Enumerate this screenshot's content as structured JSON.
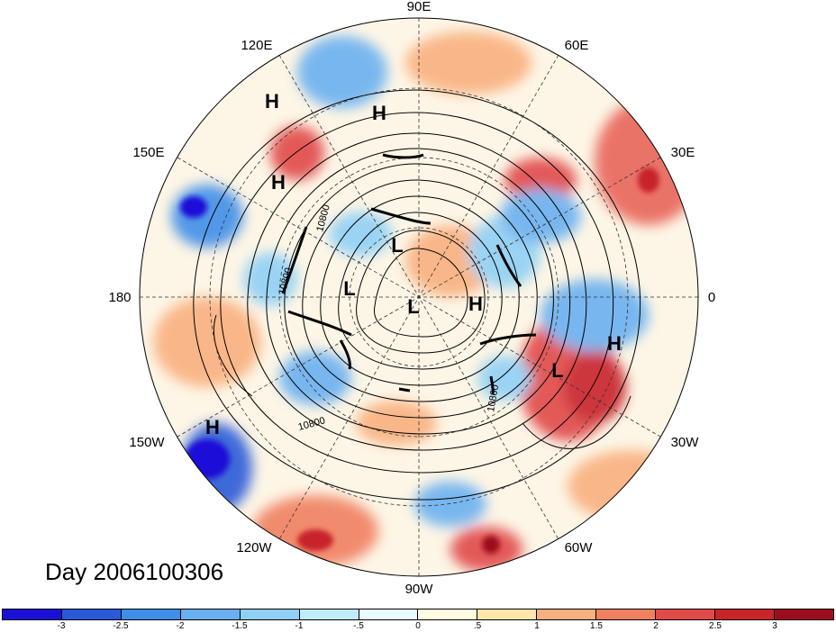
{
  "title": "Day 2006100306",
  "longitude_labels": {
    "e90": "90E",
    "e60": "60E",
    "e30": "30E",
    "lon0": "0",
    "w30": "30W",
    "w60": "60W",
    "w90": "90W",
    "w120": "120W",
    "w150": "150W",
    "lon180": "180",
    "e150": "150E",
    "e120": "120E"
  },
  "pressure_centers": [
    {
      "symbol": "H",
      "name": "high-120e"
    },
    {
      "symbol": "H",
      "name": "high-90e"
    },
    {
      "symbol": "H",
      "name": "high-150e"
    },
    {
      "symbol": "L",
      "name": "low-north-pacific"
    },
    {
      "symbol": "L",
      "name": "low-bering"
    },
    {
      "symbol": "L",
      "name": "low-pole"
    },
    {
      "symbol": "H",
      "name": "high-greenland"
    },
    {
      "symbol": "L",
      "name": "low-north-atlantic"
    },
    {
      "symbol": "H",
      "name": "high-east-atlantic"
    },
    {
      "symbol": "H",
      "name": "high-north-pacific-east"
    }
  ],
  "contour_labels": [
    "10800",
    "10800",
    "10800",
    "10800"
  ],
  "colorbar": {
    "colors": [
      "#1a10d8",
      "#2a5ad8",
      "#3f8ee8",
      "#6ab0f0",
      "#90d0f5",
      "#bfecfb",
      "#e8fbff",
      "#fffbe0",
      "#ffe6aa",
      "#f9b07f",
      "#f08060",
      "#e04a48",
      "#c8242a",
      "#9c0d1e"
    ],
    "labels": [
      "-3",
      "-2.5",
      "-2",
      "-1.5",
      "-1",
      "-.5",
      "0",
      ".5",
      "1",
      "1.5",
      "2",
      "2.5",
      "3"
    ]
  }
}
